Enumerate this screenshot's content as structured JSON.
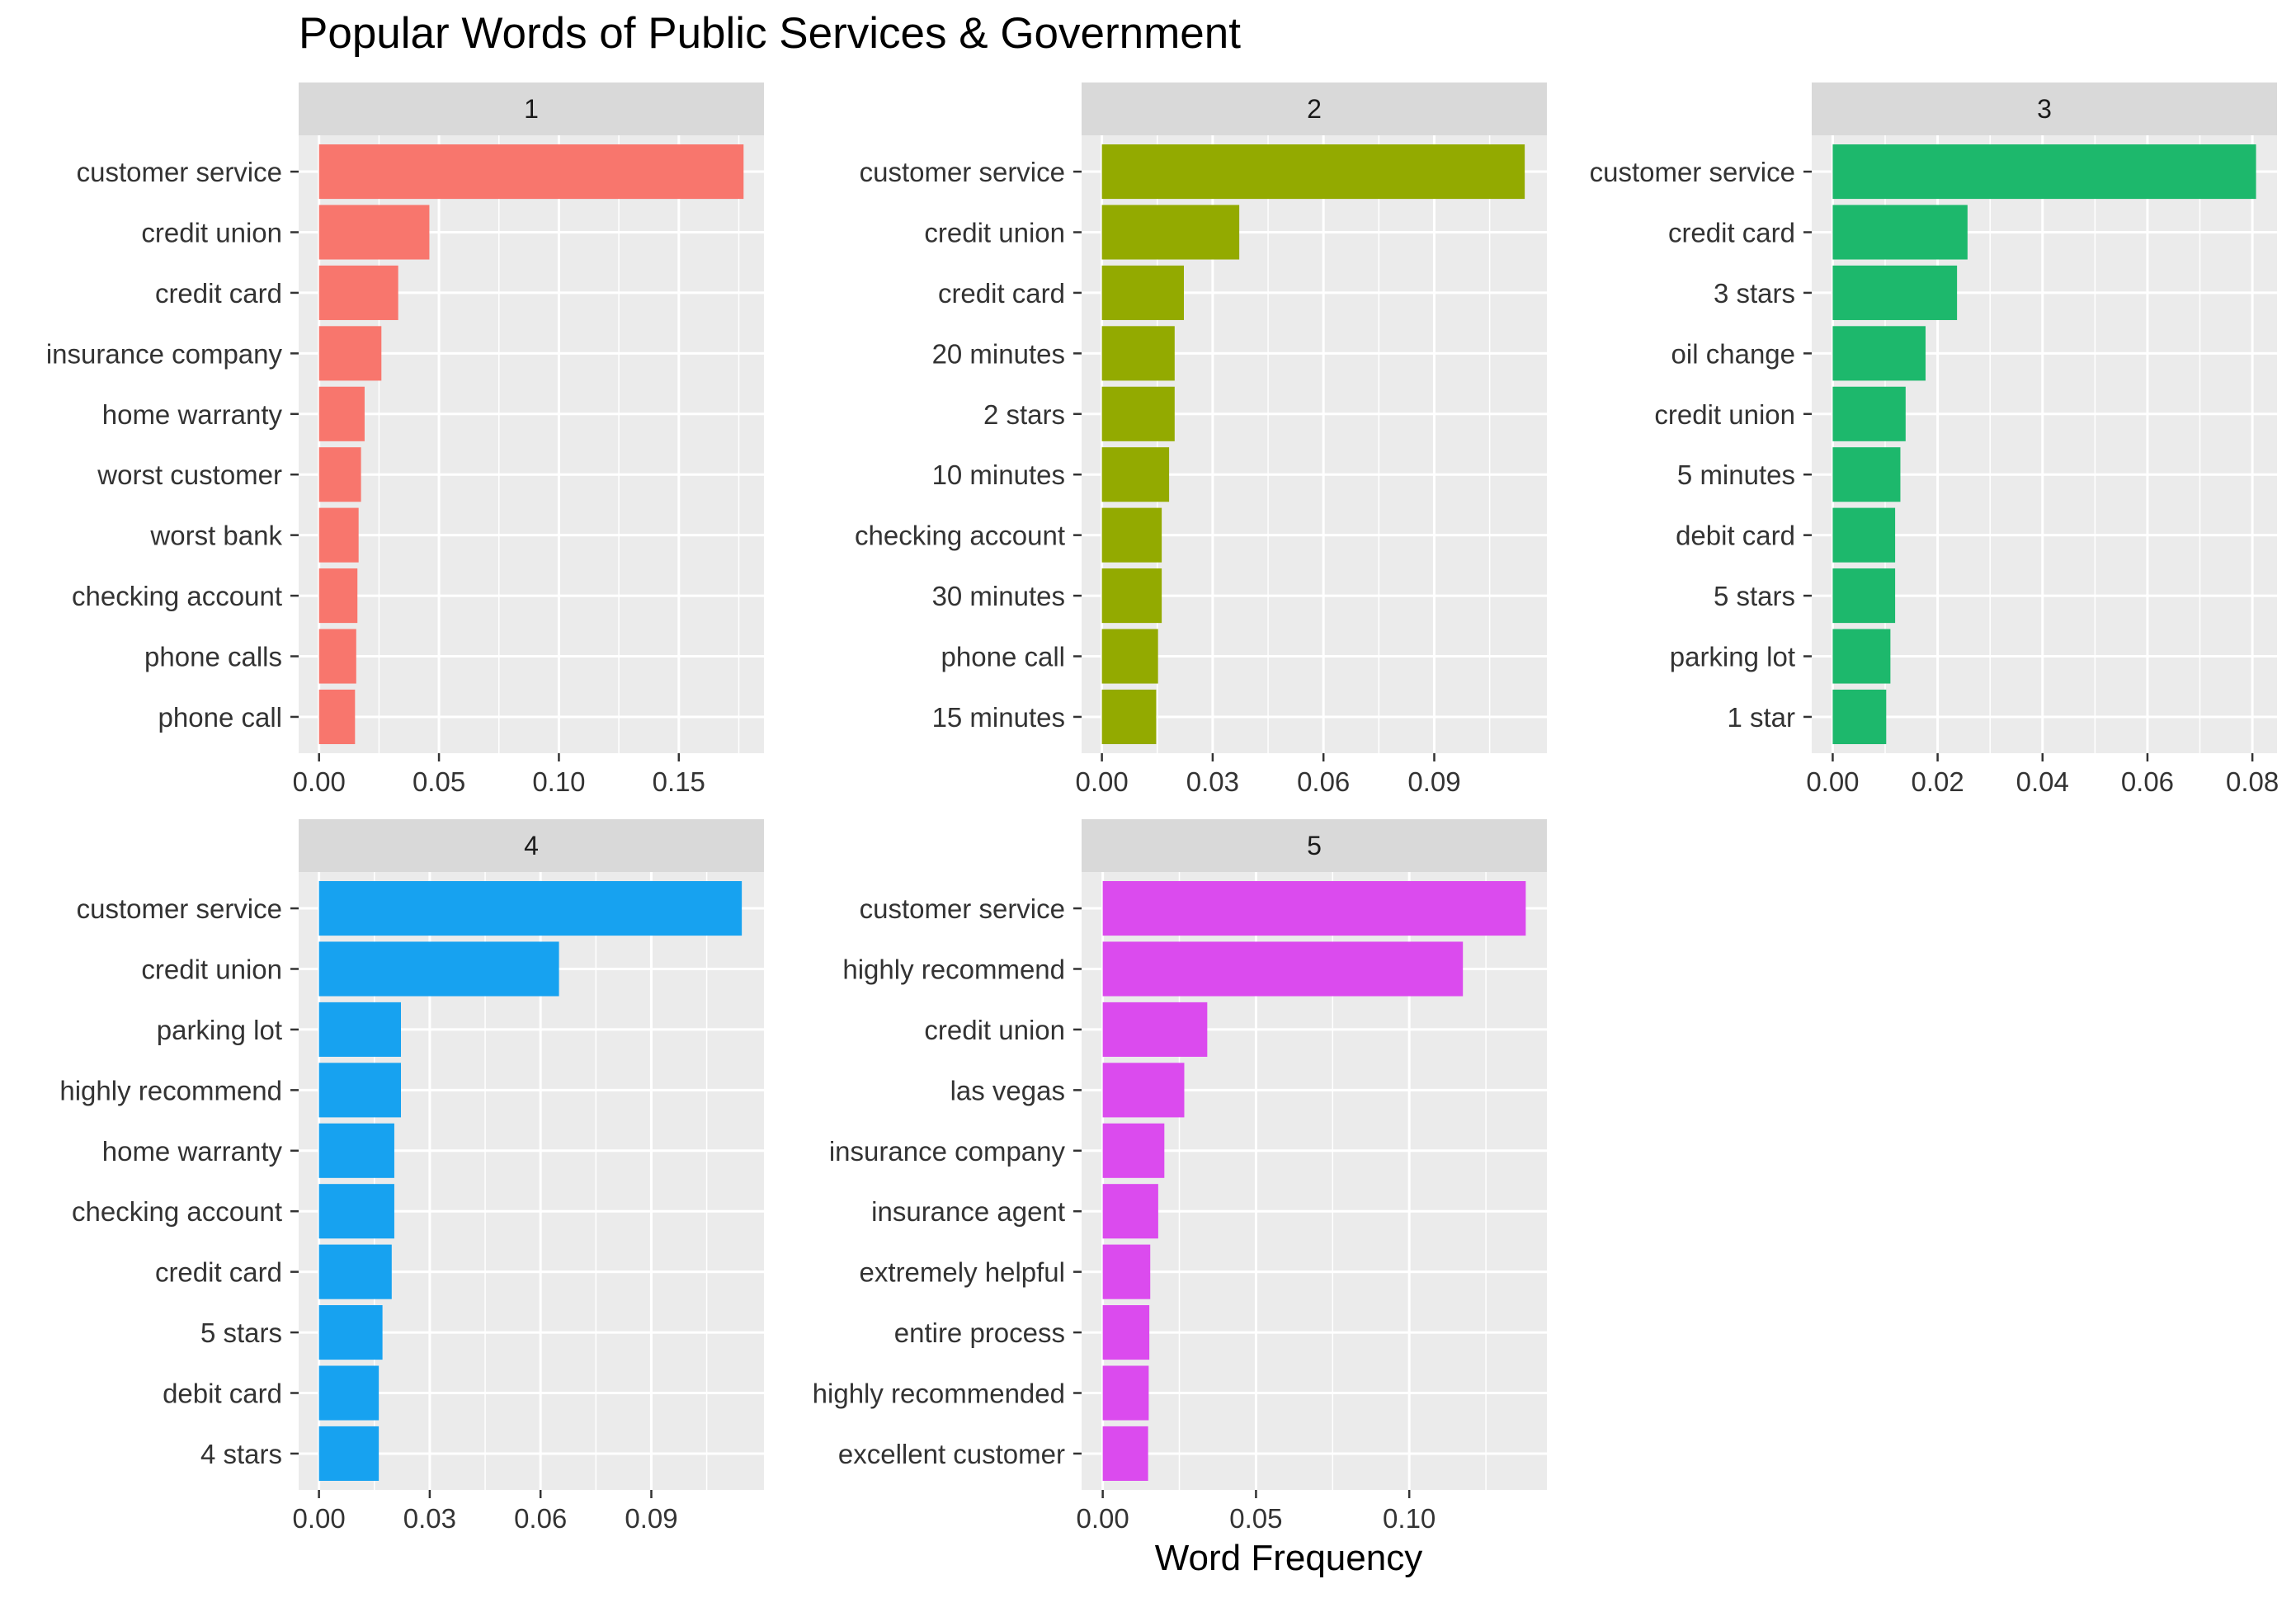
{
  "chart_data": {
    "type": "bar",
    "orientation": "horizontal",
    "title": "Popular Words of Public Services & Government",
    "xlabel": "Word Frequency",
    "ylabel": "",
    "grid": true,
    "legend": "none",
    "panels": [
      {
        "strip": "1",
        "color": "#F8766D",
        "xlim": [
          -0.0085,
          0.1855
        ],
        "ticks": [
          0,
          0.05,
          0.1,
          0.15
        ],
        "tick_labels": [
          "0.00",
          "0.05",
          "0.10",
          "0.15"
        ],
        "minor_ticks": [
          0.025,
          0.075,
          0.125,
          0.175
        ],
        "categories": [
          "customer service",
          "credit union",
          "credit card",
          "insurance company",
          "home warranty",
          "worst customer",
          "worst bank",
          "checking account",
          "phone calls",
          "phone call"
        ],
        "values": [
          0.177,
          0.046,
          0.033,
          0.026,
          0.019,
          0.0175,
          0.0165,
          0.016,
          0.0155,
          0.015
        ]
      },
      {
        "strip": "2",
        "color": "#93AA00",
        "xlim": [
          -0.0055,
          0.1205
        ],
        "ticks": [
          0,
          0.03,
          0.06,
          0.09
        ],
        "tick_labels": [
          "0.00",
          "0.03",
          "0.06",
          "0.09"
        ],
        "minor_ticks": [
          0.015,
          0.045,
          0.075,
          0.105
        ],
        "categories": [
          "customer service",
          "credit union",
          "credit card",
          "20 minutes",
          "2 stars",
          "10 minutes",
          "checking account",
          "30 minutes",
          "phone call",
          "15 minutes"
        ],
        "values": [
          0.1145,
          0.0372,
          0.0222,
          0.0197,
          0.0197,
          0.0182,
          0.0162,
          0.0162,
          0.0152,
          0.0147
        ]
      },
      {
        "strip": "3",
        "color": "#1DB86C",
        "xlim": [
          -0.004,
          0.0847
        ],
        "ticks": [
          0,
          0.02,
          0.04,
          0.06,
          0.08
        ],
        "tick_labels": [
          "0.00",
          "0.02",
          "0.04",
          "0.06",
          "0.08"
        ],
        "minor_ticks": [
          0.01,
          0.03,
          0.05,
          0.07
        ],
        "categories": [
          "customer service",
          "credit card",
          "3 stars",
          "oil change",
          "credit union",
          "5 minutes",
          "debit card",
          "5 stars",
          "parking lot",
          "1 star"
        ],
        "values": [
          0.0807,
          0.0257,
          0.0237,
          0.0177,
          0.0139,
          0.0129,
          0.0119,
          0.0119,
          0.011,
          0.0102
        ]
      },
      {
        "strip": "4",
        "color": "#17A2F0",
        "xlim": [
          -0.0055,
          0.1205
        ],
        "ticks": [
          0,
          0.03,
          0.06,
          0.09
        ],
        "tick_labels": [
          "0.00",
          "0.03",
          "0.06",
          "0.09"
        ],
        "minor_ticks": [
          0.015,
          0.045,
          0.075,
          0.105
        ],
        "categories": [
          "customer service",
          "credit union",
          "parking lot",
          "highly recommend",
          "home warranty",
          "checking account",
          "credit card",
          "5 stars",
          "debit card",
          "4 stars"
        ],
        "values": [
          0.1145,
          0.065,
          0.0222,
          0.0222,
          0.0204,
          0.0204,
          0.0197,
          0.0172,
          0.0162,
          0.0162
        ]
      },
      {
        "strip": "5",
        "color": "#DB4BEE",
        "xlim": [
          -0.0069,
          0.1449
        ],
        "ticks": [
          0,
          0.05,
          0.1
        ],
        "tick_labels": [
          "0.00",
          "0.05",
          "0.10"
        ],
        "minor_ticks": [
          0.025,
          0.075,
          0.125
        ],
        "categories": [
          "customer service",
          "highly recommend",
          "credit union",
          "las vegas",
          "insurance company",
          "insurance agent",
          "extremely helpful",
          "entire process",
          "highly recommended",
          "excellent customer"
        ],
        "values": [
          0.138,
          0.1175,
          0.0341,
          0.0266,
          0.0201,
          0.0181,
          0.0155,
          0.0152,
          0.015,
          0.0148
        ]
      }
    ]
  }
}
